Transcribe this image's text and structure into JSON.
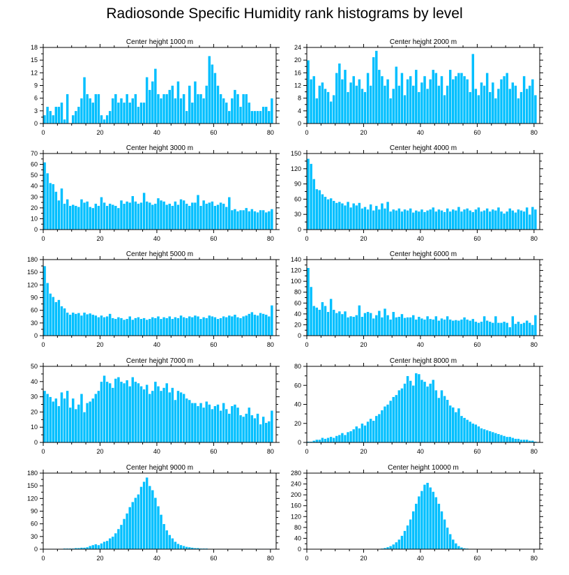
{
  "title": "Radiosonde Specific Humidity rank histograms by level",
  "style": {
    "bar_color": "#00bfff",
    "bar_edge": "#ffffff",
    "axis_color": "#000000"
  },
  "chart_data": [
    {
      "type": "bar",
      "title": "Center height 1000 m",
      "xlim": [
        0,
        82
      ],
      "ylim": [
        0,
        18
      ],
      "xticks": [
        0,
        20,
        40,
        60,
        80
      ],
      "yticks": [
        0,
        3,
        6,
        9,
        12,
        15,
        18
      ],
      "values": [
        2,
        4,
        3,
        2,
        4,
        4,
        5,
        1,
        7,
        0,
        2,
        3,
        4,
        6,
        11,
        7,
        6,
        5,
        7,
        7,
        2,
        1,
        2,
        3,
        6,
        7,
        5,
        6,
        5,
        7,
        5,
        6,
        7,
        4,
        5,
        5,
        11,
        8,
        10,
        13,
        7,
        6,
        7,
        7,
        8,
        9,
        6,
        10,
        6,
        7,
        3,
        9,
        5,
        10,
        7,
        7,
        6,
        9,
        16,
        14,
        12,
        9,
        7,
        6,
        5,
        3,
        6,
        8,
        7,
        4,
        7,
        7,
        5,
        3,
        3,
        3,
        3,
        4,
        4,
        3,
        6
      ]
    },
    {
      "type": "bar",
      "title": "Center height 2000 m",
      "xlim": [
        0,
        82
      ],
      "ylim": [
        0,
        24
      ],
      "xticks": [
        0,
        20,
        40,
        60,
        80
      ],
      "yticks": [
        0,
        4,
        8,
        12,
        16,
        20,
        24
      ],
      "values": [
        20,
        14,
        15,
        8,
        12,
        13,
        11,
        10,
        7,
        9,
        16,
        19,
        14,
        17,
        10,
        13,
        15,
        12,
        14,
        11,
        10,
        16,
        12,
        21,
        23,
        17,
        15,
        12,
        14,
        8,
        11,
        18,
        12,
        16,
        9,
        14,
        15,
        12,
        17,
        10,
        13,
        15,
        11,
        14,
        17,
        16,
        12,
        15,
        9,
        12,
        17,
        14,
        15,
        16,
        16,
        15,
        14,
        10,
        22,
        11,
        9,
        13,
        12,
        16,
        10,
        13,
        8,
        11,
        14,
        15,
        16,
        11,
        13,
        12,
        8,
        10,
        15,
        11,
        12,
        14,
        9
      ]
    },
    {
      "type": "bar",
      "title": "Center height 3000 m",
      "xlim": [
        0,
        82
      ],
      "ylim": [
        0,
        70
      ],
      "xticks": [
        0,
        20,
        40,
        60,
        80
      ],
      "yticks": [
        0,
        10,
        20,
        30,
        40,
        50,
        60,
        70
      ],
      "values": [
        62,
        52,
        43,
        42,
        35,
        27,
        38,
        24,
        28,
        22,
        23,
        22,
        21,
        28,
        25,
        26,
        21,
        20,
        24,
        22,
        30,
        25,
        22,
        24,
        23,
        22,
        20,
        27,
        24,
        26,
        25,
        31,
        26,
        24,
        25,
        34,
        26,
        25,
        23,
        24,
        29,
        27,
        26,
        23,
        24,
        22,
        26,
        23,
        28,
        27,
        24,
        22,
        25,
        25,
        32,
        22,
        27,
        24,
        25,
        26,
        22,
        23,
        25,
        24,
        21,
        30,
        18,
        19,
        17,
        18,
        18,
        20,
        17,
        19,
        17,
        16,
        18,
        18,
        16,
        17,
        19
      ]
    },
    {
      "type": "bar",
      "title": "Center height 4000 m",
      "xlim": [
        0,
        82
      ],
      "ylim": [
        0,
        150
      ],
      "xticks": [
        0,
        20,
        40,
        60,
        80
      ],
      "yticks": [
        0,
        30,
        60,
        90,
        120,
        150
      ],
      "values": [
        140,
        130,
        100,
        80,
        78,
        70,
        65,
        60,
        62,
        57,
        53,
        55,
        52,
        48,
        55,
        44,
        52,
        48,
        53,
        42,
        45,
        40,
        50,
        38,
        47,
        40,
        52,
        42,
        55,
        36,
        40,
        38,
        42,
        36,
        40,
        38,
        42,
        34,
        38,
        36,
        40,
        35,
        38,
        40,
        44,
        36,
        40,
        38,
        35,
        42,
        36,
        40,
        38,
        45,
        36,
        40,
        42,
        38,
        35,
        40,
        44,
        36,
        38,
        42,
        36,
        40,
        38,
        44,
        36,
        32,
        36,
        42,
        38,
        34,
        40,
        38,
        36,
        44,
        30,
        45,
        40
      ]
    },
    {
      "type": "bar",
      "title": "Center height 5000 m",
      "xlim": [
        0,
        82
      ],
      "ylim": [
        0,
        180
      ],
      "xticks": [
        0,
        20,
        40,
        60,
        80
      ],
      "yticks": [
        0,
        30,
        60,
        90,
        120,
        150,
        180
      ],
      "values": [
        165,
        125,
        100,
        92,
        80,
        85,
        70,
        65,
        55,
        50,
        55,
        52,
        54,
        48,
        55,
        51,
        53,
        50,
        48,
        44,
        48,
        44,
        46,
        52,
        42,
        40,
        44,
        42,
        38,
        40,
        46,
        38,
        42,
        44,
        40,
        42,
        38,
        40,
        44,
        42,
        46,
        40,
        44,
        42,
        46,
        40,
        44,
        42,
        48,
        44,
        42,
        46,
        44,
        48,
        46,
        40,
        44,
        42,
        48,
        46,
        44,
        40,
        42,
        46,
        44,
        48,
        46,
        50,
        44,
        42,
        46,
        48,
        52,
        56,
        50,
        48,
        54,
        52,
        50,
        46,
        72
      ]
    },
    {
      "type": "bar",
      "title": "Center height 6000 m",
      "xlim": [
        0,
        82
      ],
      "ylim": [
        0,
        140
      ],
      "xticks": [
        0,
        20,
        40,
        60,
        80
      ],
      "yticks": [
        0,
        20,
        40,
        60,
        80,
        100,
        120,
        140
      ],
      "values": [
        125,
        90,
        55,
        52,
        48,
        62,
        55,
        44,
        68,
        48,
        42,
        45,
        40,
        45,
        34,
        36,
        35,
        38,
        56,
        35,
        42,
        44,
        42,
        32,
        38,
        46,
        34,
        50,
        38,
        30,
        44,
        34,
        35,
        40,
        33,
        34,
        34,
        38,
        30,
        35,
        32,
        30,
        36,
        31,
        30,
        36,
        28,
        32,
        30,
        36,
        30,
        28,
        29,
        28,
        30,
        34,
        30,
        28,
        31,
        26,
        24,
        26,
        36,
        28,
        26,
        24,
        36,
        24,
        24,
        26,
        24,
        16,
        36,
        22,
        26,
        22,
        24,
        28,
        24,
        20,
        38
      ]
    },
    {
      "type": "bar",
      "title": "Center height 7000 m",
      "xlim": [
        0,
        82
      ],
      "ylim": [
        0,
        50
      ],
      "xticks": [
        0,
        20,
        40,
        60,
        80
      ],
      "yticks": [
        0,
        10,
        20,
        30,
        40,
        50
      ],
      "values": [
        34,
        32,
        30,
        27,
        29,
        24,
        33,
        29,
        34,
        23,
        29,
        22,
        25,
        32,
        20,
        26,
        27,
        29,
        32,
        34,
        40,
        44,
        40,
        39,
        36,
        42,
        43,
        40,
        39,
        41,
        37,
        43,
        40,
        39,
        37,
        35,
        38,
        32,
        34,
        40,
        37,
        34,
        36,
        39,
        33,
        36,
        28,
        34,
        33,
        32,
        29,
        28,
        26,
        26,
        24,
        26,
        23,
        27,
        25,
        22,
        24,
        25,
        21,
        26,
        22,
        19,
        24,
        25,
        23,
        18,
        17,
        19,
        23,
        18,
        16,
        19,
        12,
        17,
        13,
        14,
        21
      ]
    },
    {
      "type": "bar",
      "title": "Center height 8000 m",
      "xlim": [
        0,
        82
      ],
      "ylim": [
        0,
        80
      ],
      "xticks": [
        0,
        20,
        40,
        60,
        80
      ],
      "yticks": [
        0,
        20,
        40,
        60,
        80
      ],
      "values": [
        1,
        1,
        2,
        3,
        3,
        5,
        4,
        5,
        6,
        5,
        7,
        8,
        10,
        8,
        11,
        12,
        14,
        17,
        15,
        20,
        18,
        22,
        25,
        23,
        28,
        30,
        34,
        38,
        40,
        44,
        48,
        50,
        55,
        57,
        62,
        70,
        65,
        60,
        73,
        72,
        66,
        64,
        59,
        62,
        66,
        55,
        47,
        55,
        49,
        45,
        39,
        37,
        32,
        36,
        28,
        26,
        24,
        22,
        20,
        19,
        17,
        15,
        14,
        13,
        12,
        11,
        10,
        9,
        8,
        7,
        6,
        6,
        5,
        4,
        4,
        3,
        3,
        3,
        2,
        2,
        1
      ]
    },
    {
      "type": "bar",
      "title": "Center height 9000 m",
      "xlim": [
        0,
        82
      ],
      "ylim": [
        0,
        180
      ],
      "xticks": [
        0,
        20,
        40,
        60,
        80
      ],
      "yticks": [
        0,
        30,
        60,
        90,
        120,
        150,
        180
      ],
      "values": [
        1,
        1,
        1,
        1,
        1,
        1,
        1,
        2,
        2,
        2,
        2,
        3,
        3,
        4,
        4,
        5,
        8,
        10,
        12,
        10,
        14,
        18,
        20,
        26,
        30,
        38,
        48,
        58,
        72,
        85,
        100,
        112,
        122,
        130,
        148,
        160,
        170,
        150,
        140,
        122,
        102,
        82,
        60,
        45,
        34,
        26,
        18,
        13,
        10,
        8,
        6,
        5,
        4,
        3,
        3,
        2,
        2,
        2,
        1,
        1,
        1,
        1,
        1,
        1,
        1,
        1,
        1,
        1,
        1,
        1,
        1,
        1,
        1,
        1,
        1,
        1,
        1,
        1,
        1,
        1,
        1
      ]
    },
    {
      "type": "bar",
      "title": "Center height 10000 m",
      "xlim": [
        0,
        82
      ],
      "ylim": [
        0,
        280
      ],
      "xticks": [
        0,
        20,
        40,
        60,
        80
      ],
      "yticks": [
        0,
        40,
        80,
        120,
        160,
        200,
        240,
        280
      ],
      "values": [
        0,
        0,
        0,
        0,
        0,
        0,
        0,
        0,
        0,
        0,
        0,
        0,
        0,
        0,
        0,
        0,
        0,
        0,
        0,
        0,
        0,
        0,
        0,
        0,
        1,
        2,
        3,
        5,
        8,
        12,
        18,
        26,
        36,
        50,
        68,
        88,
        110,
        140,
        168,
        195,
        215,
        238,
        245,
        228,
        212,
        192,
        168,
        140,
        110,
        80,
        56,
        36,
        22,
        12,
        7,
        4,
        3,
        2,
        2,
        1,
        1,
        1,
        1,
        1,
        1,
        1,
        1,
        1,
        1,
        1,
        1,
        1,
        1,
        1,
        1,
        1,
        1,
        1,
        1,
        1,
        1
      ]
    }
  ]
}
